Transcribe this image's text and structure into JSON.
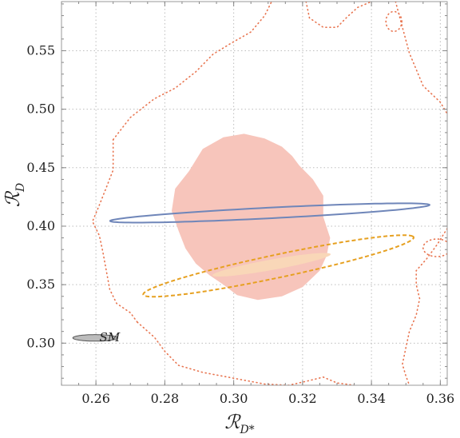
{
  "chart_data": {
    "type": "scatter",
    "title": "",
    "xlabel": "ℛ",
    "xlabel_sub": "D*",
    "ylabel": "ℛ",
    "ylabel_sub": "D",
    "xlim": [
      0.25,
      0.362
    ],
    "ylim": [
      0.264,
      0.592
    ],
    "x_ticks": [
      0.26,
      0.28,
      0.3,
      0.32,
      0.34,
      0.36
    ],
    "x_tick_labels": [
      "0.26",
      "0.28",
      "0.30",
      "0.32",
      "0.34",
      "0.36"
    ],
    "y_ticks": [
      0.3,
      0.35,
      0.4,
      0.45,
      0.5,
      0.55
    ],
    "y_tick_labels": [
      "0.30",
      "0.35",
      "0.40",
      "0.45",
      "0.50",
      "0.55"
    ],
    "grid": true,
    "legend": "none",
    "annotations": [
      {
        "text": "SM",
        "x": 0.264,
        "y": 0.305
      }
    ],
    "series": [
      {
        "kind": "filled-ellipse",
        "color": "#bcbcbc",
        "edge": "#555555",
        "center": [
          0.2598,
          0.3045
        ],
        "radii": [
          0.0065,
          0.0028
        ],
        "angle_deg": 0
      },
      {
        "kind": "filled-region",
        "color": "#f7c5bb",
        "points": [
          [
            0.287,
            0.447
          ],
          [
            0.291,
            0.466
          ],
          [
            0.297,
            0.476
          ],
          [
            0.303,
            0.479
          ],
          [
            0.309,
            0.475
          ],
          [
            0.314,
            0.468
          ],
          [
            0.317,
            0.46
          ],
          [
            0.319,
            0.452
          ],
          [
            0.323,
            0.44
          ],
          [
            0.326,
            0.426
          ],
          [
            0.326,
            0.408
          ],
          [
            0.328,
            0.39
          ],
          [
            0.327,
            0.375
          ],
          [
            0.325,
            0.362
          ],
          [
            0.32,
            0.348
          ],
          [
            0.314,
            0.34
          ],
          [
            0.307,
            0.337
          ],
          [
            0.301,
            0.341
          ],
          [
            0.297,
            0.35
          ],
          [
            0.293,
            0.358
          ],
          [
            0.289,
            0.368
          ],
          [
            0.286,
            0.381
          ],
          [
            0.284,
            0.396
          ],
          [
            0.282,
            0.413
          ],
          [
            0.283,
            0.432
          ]
        ]
      },
      {
        "kind": "filled-ellipse",
        "color": "#f9d7b8",
        "center": [
          0.311,
          0.367
        ],
        "radii": [
          0.0195,
          0.004
        ],
        "angle_deg": 29
      },
      {
        "kind": "ellipse-outline",
        "color": "#6f86b9",
        "style": "solid",
        "center": [
          0.3105,
          0.4113
        ],
        "radii": [
          0.0469,
          0.0045
        ],
        "angle_deg": 8.5
      },
      {
        "kind": "ellipse-outline",
        "color": "#e6a020",
        "style": "dashed",
        "center": [
          0.313,
          0.366
        ],
        "radii": [
          0.0465,
          0.0085
        ],
        "angle_deg": 33
      },
      {
        "kind": "contour-outline",
        "color": "#e8744f",
        "style": "dotted",
        "points": [
          [
            0.265,
            0.474
          ],
          [
            0.27,
            0.493
          ],
          [
            0.277,
            0.509
          ],
          [
            0.283,
            0.518
          ],
          [
            0.289,
            0.532
          ],
          [
            0.294,
            0.547
          ],
          [
            0.299,
            0.556
          ],
          [
            0.305,
            0.566
          ],
          [
            0.309,
            0.58
          ],
          [
            0.311,
            0.592
          ]
        ]
      },
      {
        "kind": "contour-outline",
        "color": "#e8744f",
        "style": "dotted",
        "points": [
          [
            0.272,
            0.318
          ],
          [
            0.27,
            0.326
          ],
          [
            0.266,
            0.334
          ],
          [
            0.264,
            0.346
          ],
          [
            0.263,
            0.362
          ],
          [
            0.262,
            0.378
          ],
          [
            0.261,
            0.392
          ],
          [
            0.259,
            0.404
          ],
          [
            0.261,
            0.418
          ],
          [
            0.263,
            0.433
          ],
          [
            0.265,
            0.448
          ],
          [
            0.265,
            0.462
          ],
          [
            0.265,
            0.474
          ]
        ]
      },
      {
        "kind": "contour-outline",
        "color": "#e8744f",
        "style": "dotted",
        "points": [
          [
            0.272,
            0.318
          ],
          [
            0.277,
            0.305
          ],
          [
            0.28,
            0.293
          ],
          [
            0.284,
            0.281
          ],
          [
            0.291,
            0.275
          ],
          [
            0.3,
            0.27
          ],
          [
            0.309,
            0.265
          ],
          [
            0.316,
            0.264
          ],
          [
            0.322,
            0.268
          ],
          [
            0.326,
            0.271
          ],
          [
            0.33,
            0.266
          ],
          [
            0.335,
            0.264
          ]
        ]
      },
      {
        "kind": "contour-outline",
        "color": "#e8744f",
        "style": "dotted",
        "points": [
          [
            0.321,
            0.592
          ],
          [
            0.322,
            0.578
          ],
          [
            0.326,
            0.57
          ],
          [
            0.33,
            0.57
          ],
          [
            0.333,
            0.579
          ],
          [
            0.336,
            0.587
          ],
          [
            0.34,
            0.592
          ]
        ]
      },
      {
        "kind": "contour-outline",
        "color": "#e8744f",
        "style": "dotted",
        "points": [
          [
            0.347,
            0.592
          ],
          [
            0.349,
            0.57
          ],
          [
            0.351,
            0.548
          ],
          [
            0.355,
            0.52
          ],
          [
            0.36,
            0.506
          ],
          [
            0.362,
            0.496
          ]
        ]
      },
      {
        "kind": "contour-outline",
        "color": "#e8744f",
        "style": "dotted",
        "points": [
          [
            0.362,
            0.398
          ],
          [
            0.359,
            0.384
          ],
          [
            0.356,
            0.372
          ],
          [
            0.353,
            0.362
          ],
          [
            0.353,
            0.35
          ],
          [
            0.354,
            0.338
          ],
          [
            0.353,
            0.324
          ],
          [
            0.351,
            0.31
          ],
          [
            0.35,
            0.296
          ],
          [
            0.349,
            0.282
          ],
          [
            0.35,
            0.272
          ],
          [
            0.351,
            0.264
          ]
        ]
      },
      {
        "kind": "closed-loop",
        "color": "#e8744f",
        "style": "dotted",
        "center": [
          0.3465,
          0.575
        ],
        "radii": [
          0.0023,
          0.0085
        ],
        "angle_deg": 0
      },
      {
        "kind": "closed-loop",
        "color": "#e8744f",
        "style": "dotted",
        "center": [
          0.359,
          0.3815
        ],
        "radii": [
          0.004,
          0.0075
        ],
        "angle_deg": 0
      }
    ]
  }
}
